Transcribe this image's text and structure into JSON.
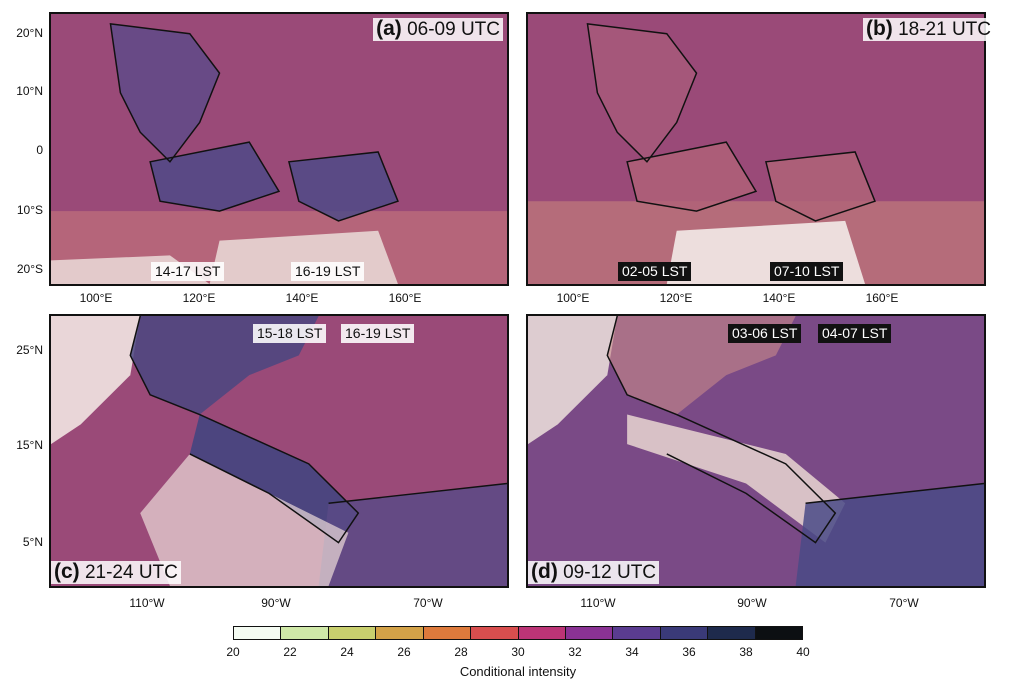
{
  "panels": [
    {
      "id": "a",
      "time": "06-09 UTC",
      "lst": [
        "14-17 LST",
        "16-19 LST"
      ],
      "lst_style": "light"
    },
    {
      "id": "b",
      "time": "18-21 UTC",
      "lst": [
        "02-05 LST",
        "07-10 LST"
      ],
      "lst_style": "dark"
    },
    {
      "id": "c",
      "time": "21-24 UTC",
      "lst": [
        "15-18 LST",
        "16-19 LST"
      ],
      "lst_style": "light"
    },
    {
      "id": "d",
      "time": "09-12 UTC",
      "lst": [
        "03-06 LST",
        "04-07 LST"
      ],
      "lst_style": "dark"
    }
  ],
  "top_axis": {
    "lat_ticks": [
      "20°N",
      "10°N",
      "0",
      "10°S",
      "20°S"
    ],
    "lon_ticks": [
      "100°E",
      "120°E",
      "140°E",
      "160°E"
    ]
  },
  "bottom_axis": {
    "lat_ticks": [
      "25°N",
      "15°N",
      "5°N"
    ],
    "lon_ticks": [
      "110°W",
      "90°W",
      "70°W"
    ]
  },
  "colorbar": {
    "label": "Conditional intensity",
    "ticks": [
      "20",
      "22",
      "24",
      "26",
      "28",
      "30",
      "32",
      "34",
      "36",
      "38",
      "40"
    ],
    "colors": [
      "#f4fbf2",
      "#cfe8a8",
      "#c8cf6e",
      "#d3a248",
      "#dd7a3c",
      "#d84e4e",
      "#bc3476",
      "#8a3294",
      "#5a3c90",
      "#3a3a78",
      "#1e2a4c",
      "#0c0f12"
    ]
  }
}
